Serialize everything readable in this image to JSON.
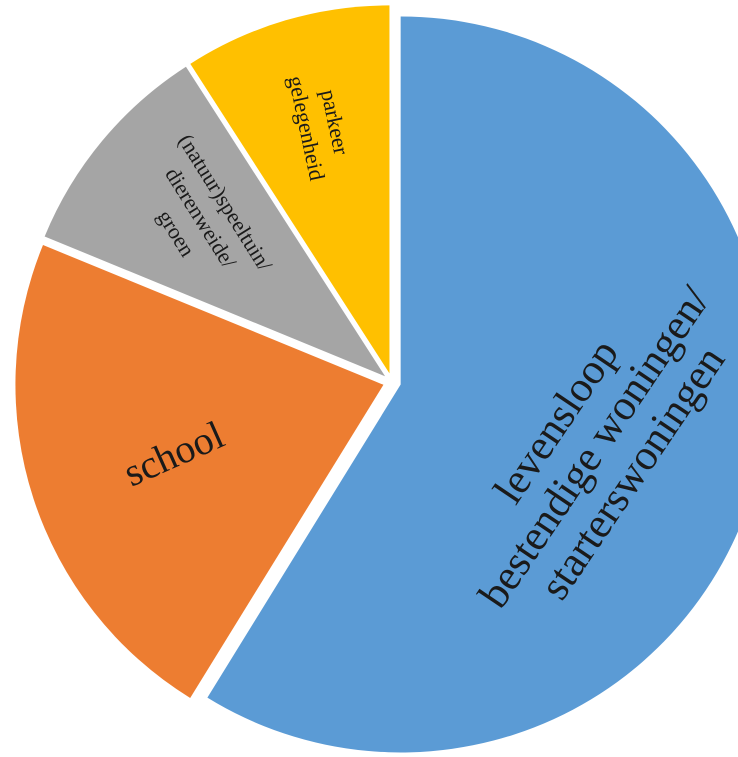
{
  "chart_data": {
    "type": "pie",
    "title": "",
    "start_angle_deg": 0,
    "direction": "clockwise",
    "exploded": true,
    "grid": false,
    "legend": "none",
    "series": [
      {
        "label_lines": [
          "levensloop",
          "bestendige woningen/",
          "starterswoningen"
        ],
        "value": 0.588,
        "color": "#5B9BD5"
      },
      {
        "label_lines": [
          "school"
        ],
        "value": 0.224,
        "color": "#ED7D31"
      },
      {
        "label_lines": [
          "(natuur)speeltuin/",
          "dierenweide/",
          "groen"
        ],
        "value": 0.097,
        "color": "#A5A5A5"
      },
      {
        "label_lines": [
          "parkeer",
          "gelegenheid"
        ],
        "value": 0.091,
        "color": "#FFC000"
      }
    ]
  }
}
